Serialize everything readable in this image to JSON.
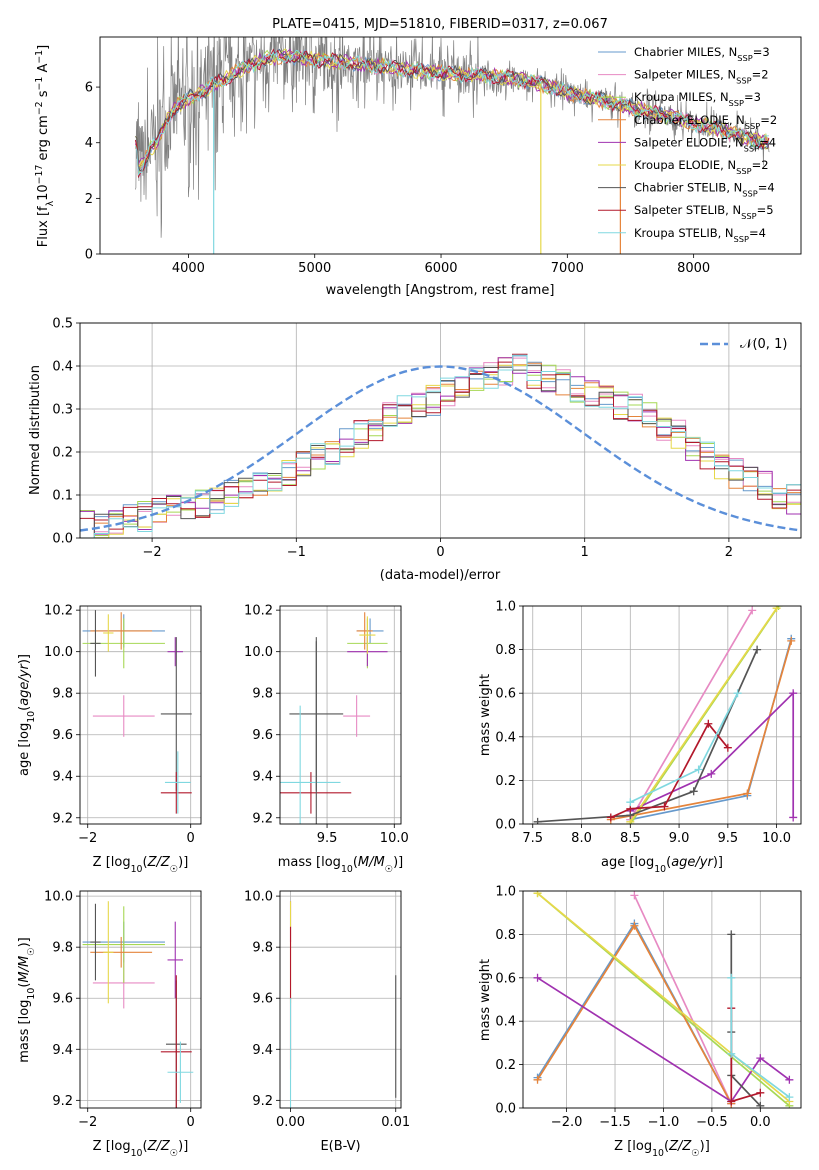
{
  "colors": {
    "Chabrier MILES": "#6699cc",
    "Salpeter MILES": "#e78ac3",
    "Kroupa MILES": "#a6d854",
    "Chabrier ELODIE": "#e5843b",
    "Salpeter ELODIE": "#a032b0",
    "Kroupa ELODIE": "#e6d84a",
    "Chabrier STELIB": "#555555",
    "Salpeter STELIB": "#b2182b",
    "Kroupa STELIB": "#80d8e0",
    "data": "#808080",
    "gauss": "#5b8fd9",
    "grid": "#b0b0b0"
  },
  "chart_data": [
    {
      "type": "line",
      "id": "spectrum",
      "title": "PLATE=0415, MJD=51810, FIBERID=0317, z=0.067",
      "xlabel": "wavelength [Angstrom, rest frame]",
      "ylabel": "Flux [f_λ 10^-17 erg cm^-2 s^-1 A^-1]",
      "xlim": [
        3300,
        8850
      ],
      "ylim": [
        0,
        7.8
      ],
      "xticks": [
        4000,
        5000,
        6000,
        7000,
        8000
      ],
      "yticks": [
        0,
        2,
        4,
        6
      ],
      "grid": false,
      "legend_position": "top-right",
      "legend": [
        {
          "name": "Chabrier MILES",
          "nssp": "3"
        },
        {
          "name": "Salpeter MILES",
          "nssp": "2"
        },
        {
          "name": "Kroupa MILES",
          "nssp": "3"
        },
        {
          "name": "Chabrier ELODIE",
          "nssp": "2"
        },
        {
          "name": "Salpeter ELODIE",
          "nssp": "4"
        },
        {
          "name": "Kroupa ELODIE",
          "nssp": "2"
        },
        {
          "name": "Chabrier STELIB",
          "nssp": "4"
        },
        {
          "name": "Salpeter STELIB",
          "nssp": "5"
        },
        {
          "name": "Kroupa STELIB",
          "nssp": "4"
        }
      ],
      "continuum_model": [
        [
          3600,
          3.0
        ],
        [
          3650,
          3.3
        ],
        [
          3700,
          3.8
        ],
        [
          3750,
          4.0
        ],
        [
          3800,
          4.5
        ],
        [
          3850,
          5.0
        ],
        [
          3900,
          5.3
        ],
        [
          4000,
          5.6
        ],
        [
          4100,
          5.8
        ],
        [
          4200,
          6.1
        ],
        [
          4300,
          6.3
        ],
        [
          4400,
          6.6
        ],
        [
          4500,
          6.8
        ],
        [
          4600,
          7.0
        ],
        [
          4700,
          7.1
        ],
        [
          4800,
          7.1
        ],
        [
          5000,
          7.0
        ],
        [
          5200,
          6.9
        ],
        [
          5400,
          6.8
        ],
        [
          5600,
          6.7
        ],
        [
          5800,
          6.6
        ],
        [
          6000,
          6.5
        ],
        [
          6200,
          6.45
        ],
        [
          6400,
          6.4
        ],
        [
          6600,
          6.3
        ],
        [
          6800,
          6.1
        ],
        [
          7000,
          5.8
        ],
        [
          7200,
          5.6
        ],
        [
          7400,
          5.4
        ],
        [
          7600,
          5.15
        ],
        [
          7800,
          4.95
        ],
        [
          8000,
          4.7
        ],
        [
          8200,
          4.5
        ],
        [
          8400,
          4.2
        ],
        [
          8600,
          4.0
        ]
      ]
    },
    {
      "type": "line",
      "id": "residuals",
      "xlabel": "(data-model)/error",
      "ylabel": "Normed distribution",
      "xlim": [
        -2.5,
        2.5
      ],
      "ylim": [
        0,
        0.5
      ],
      "xticks": [
        -2,
        -1,
        0,
        1,
        2
      ],
      "yticks": [
        0.0,
        0.1,
        0.2,
        0.3,
        0.4,
        0.5
      ],
      "grid": true,
      "legend_position": "top-right",
      "gauss_label": "N(0,1)",
      "hist_bins": [
        -2.5,
        2.5,
        0.1
      ],
      "hist_base": [
        0.03,
        0.035,
        0.04,
        0.045,
        0.05,
        0.06,
        0.065,
        0.07,
        0.08,
        0.09,
        0.1,
        0.115,
        0.13,
        0.14,
        0.15,
        0.17,
        0.19,
        0.2,
        0.22,
        0.24,
        0.26,
        0.28,
        0.3,
        0.31,
        0.32,
        0.34,
        0.36,
        0.37,
        0.38,
        0.39,
        0.4,
        0.38,
        0.37,
        0.36,
        0.35,
        0.34,
        0.33,
        0.31,
        0.3,
        0.28,
        0.26,
        0.24,
        0.21,
        0.19,
        0.17,
        0.15,
        0.13,
        0.12,
        0.1,
        0.09
      ]
    },
    {
      "type": "scatter",
      "id": "z-age",
      "xlabel": "Z [log10(Z/Z☉)]",
      "ylabel": "age  [log10(age/yr)]",
      "xlim": [
        -2.15,
        0.2
      ],
      "ylim": [
        9.17,
        10.22
      ],
      "xticks": [
        -2,
        0
      ],
      "yticks": [
        9.2,
        9.4,
        9.6,
        9.8,
        10.0,
        10.2
      ],
      "grid": true,
      "points": [
        {
          "s": "Chabrier MILES",
          "x": -1.3,
          "y": 10.1,
          "ex": 0.8,
          "ey": 0.08
        },
        {
          "s": "Salpeter MILES",
          "x": -1.3,
          "y": 9.69,
          "ex": 0.6,
          "ey": 0.1
        },
        {
          "s": "Kroupa MILES",
          "x": -1.3,
          "y": 10.04,
          "ex": 0.8,
          "ey": 0.12
        },
        {
          "s": "Chabrier ELODIE",
          "x": -1.35,
          "y": 10.1,
          "ex": 0.6,
          "ey": 0.09
        },
        {
          "s": "Salpeter ELODIE",
          "x": -0.3,
          "y": 10.0,
          "ex": 0.15,
          "ey": 0.07
        },
        {
          "s": "Kroupa ELODIE",
          "x": -1.6,
          "y": 10.09,
          "ex": 0.1,
          "ey": 0.09
        },
        {
          "s": "Chabrier STELIB",
          "x": -0.28,
          "y": 9.7,
          "ex": 0.3,
          "ey": 0.37
        },
        {
          "s": "Salpeter STELIB",
          "x": -0.28,
          "y": 9.32,
          "ex": 0.3,
          "ey": 0.1
        },
        {
          "s": "Kroupa STELIB",
          "x": -0.25,
          "y": 9.37,
          "ex": 0.25,
          "ey": 0.15
        },
        {
          "s": "Chabrier STELIB",
          "x": -1.85,
          "y": 10.04,
          "ex": 0.1,
          "ey": 0.16
        }
      ]
    },
    {
      "type": "scatter",
      "id": "mass-age",
      "xlabel": "mass [log10(M/M☉)]",
      "ylabel": "",
      "xlim": [
        9.15,
        10.05
      ],
      "ylim": [
        9.17,
        10.22
      ],
      "xticks": [
        9.5,
        10.0
      ],
      "yticks": [
        9.2,
        9.4,
        9.6,
        9.8,
        10.0,
        10.2
      ],
      "grid": true,
      "points": [
        {
          "s": "Chabrier MILES",
          "x": 9.82,
          "y": 10.1,
          "ex": 0.1,
          "ey": 0.06
        },
        {
          "s": "Salpeter MILES",
          "x": 9.72,
          "y": 9.69,
          "ex": 0.1,
          "ey": 0.1
        },
        {
          "s": "Kroupa MILES",
          "x": 9.8,
          "y": 10.04,
          "ex": 0.15,
          "ey": 0.12
        },
        {
          "s": "Chabrier ELODIE",
          "x": 9.78,
          "y": 10.1,
          "ex": 0.06,
          "ey": 0.09
        },
        {
          "s": "Salpeter ELODIE",
          "x": 9.8,
          "y": 10.0,
          "ex": 0.15,
          "ey": 0.07
        },
        {
          "s": "Kroupa ELODIE",
          "x": 9.8,
          "y": 10.08,
          "ex": 0.06,
          "ey": 0.09
        },
        {
          "s": "Chabrier STELIB",
          "x": 9.42,
          "y": 9.7,
          "ex": 0.2,
          "ey": 0.37
        },
        {
          "s": "Salpeter STELIB",
          "x": 9.38,
          "y": 9.32,
          "ex": 0.3,
          "ey": 0.1
        },
        {
          "s": "Kroupa STELIB",
          "x": 9.3,
          "y": 9.37,
          "ex": 0.3,
          "ey": 0.37
        },
        {
          "s": "Chabrier STELIB",
          "x": 9.42,
          "y": 9.5,
          "ex": 0.0,
          "ey": 0.55
        }
      ]
    },
    {
      "type": "line",
      "id": "age-weight",
      "xlabel": "age  [log10(age/yr)]",
      "ylabel": "mass weight",
      "xlim": [
        7.4,
        10.25
      ],
      "ylim": [
        0,
        1.0
      ],
      "xticks": [
        7.5,
        8.0,
        8.5,
        9.0,
        9.5,
        10.0
      ],
      "yticks": [
        0.0,
        0.2,
        0.4,
        0.6,
        0.8,
        1.0
      ],
      "grid": true,
      "series": [
        {
          "s": "Chabrier MILES",
          "x": [
            8.5,
            9.7,
            10.15
          ],
          "y": [
            0.02,
            0.13,
            0.85
          ]
        },
        {
          "s": "Salpeter MILES",
          "x": [
            8.5,
            9.75
          ],
          "y": [
            0.02,
            0.98
          ]
        },
        {
          "s": "Kroupa MILES",
          "x": [
            8.5,
            10.02
          ],
          "y": [
            0.0,
            1.0
          ]
        },
        {
          "s": "Chabrier ELODIE",
          "x": [
            8.3,
            9.7,
            10.15
          ],
          "y": [
            0.02,
            0.14,
            0.84
          ]
        },
        {
          "s": "Salpeter ELODIE",
          "x": [
            8.5,
            9.33,
            10.17,
            10.17
          ],
          "y": [
            0.06,
            0.23,
            0.6,
            0.03
          ]
        },
        {
          "s": "Kroupa ELODIE",
          "x": [
            8.5,
            10.0
          ],
          "y": [
            0.01,
            0.99
          ]
        },
        {
          "s": "Chabrier STELIB",
          "x": [
            7.55,
            8.5,
            9.15,
            9.8
          ],
          "y": [
            0.01,
            0.04,
            0.15,
            0.8
          ]
        },
        {
          "s": "Salpeter STELIB",
          "x": [
            8.3,
            8.5,
            8.85,
            9.3,
            9.5
          ],
          "y": [
            0.03,
            0.07,
            0.08,
            0.46,
            0.35
          ]
        },
        {
          "s": "Kroupa STELIB",
          "x": [
            8.5,
            9.2,
            9.6
          ],
          "y": [
            0.1,
            0.25,
            0.6
          ]
        }
      ]
    },
    {
      "type": "scatter",
      "id": "z-mass",
      "xlabel": "Z [log10(Z/Z☉)]",
      "ylabel": "mass [log10(M/M☉)]",
      "xlim": [
        -2.15,
        0.2
      ],
      "ylim": [
        9.17,
        10.02
      ],
      "xticks": [
        -2,
        0
      ],
      "yticks": [
        9.2,
        9.4,
        9.6,
        9.8,
        10.0
      ],
      "grid": true,
      "points": [
        {
          "s": "Chabrier MILES",
          "x": -1.3,
          "y": 9.82,
          "ex": 0.8,
          "ey": 0.08
        },
        {
          "s": "Salpeter MILES",
          "x": -1.3,
          "y": 9.66,
          "ex": 0.6,
          "ey": 0.1
        },
        {
          "s": "Kroupa MILES",
          "x": -1.3,
          "y": 9.81,
          "ex": 0.8,
          "ey": 0.15
        },
        {
          "s": "Chabrier ELODIE",
          "x": -1.35,
          "y": 9.78,
          "ex": 0.6,
          "ey": 0.06
        },
        {
          "s": "Salpeter ELODIE",
          "x": -0.3,
          "y": 9.75,
          "ex": 0.15,
          "ey": 0.15
        },
        {
          "s": "Kroupa ELODIE",
          "x": -1.6,
          "y": 9.78,
          "ex": 0.1,
          "ey": 0.2
        },
        {
          "s": "Chabrier STELIB",
          "x": -0.28,
          "y": 9.42,
          "ex": 0.2,
          "ey": 0.25
        },
        {
          "s": "Salpeter STELIB",
          "x": -0.28,
          "y": 9.39,
          "ex": 0.3,
          "ey": 0.3
        },
        {
          "s": "Kroupa STELIB",
          "x": -0.2,
          "y": 9.31,
          "ex": 0.25,
          "ey": 0.12
        },
        {
          "s": "Chabrier STELIB",
          "x": -1.85,
          "y": 9.82,
          "ex": 0.1,
          "ey": 0.15
        }
      ]
    },
    {
      "type": "scatter",
      "id": "ebv-mass",
      "xlabel": "E(B-V)",
      "ylabel": "",
      "xlim": [
        -0.001,
        0.0105
      ],
      "ylim": [
        9.17,
        10.02
      ],
      "xticks": [
        0.0,
        0.01
      ],
      "xticklabels": [
        "0.00",
        "0.01"
      ],
      "yticks": [
        9.2,
        9.4,
        9.6,
        9.8,
        10.0
      ],
      "grid": true,
      "points": [
        {
          "s": "Salpeter ELODIE",
          "x": 0.0,
          "y": 9.9,
          "ey": 0.08
        },
        {
          "s": "Kroupa ELODIE",
          "x": 0.0,
          "y": 9.78,
          "ey": 0.2
        },
        {
          "s": "Salpeter STELIB",
          "x": 0.0,
          "y": 9.6,
          "ey": 0.28
        },
        {
          "s": "Kroupa STELIB",
          "x": 0.0,
          "y": 9.35,
          "ey": 0.25
        },
        {
          "s": "Chabrier STELIB",
          "x": 0.01,
          "y": 9.45,
          "ey": 0.24
        }
      ]
    },
    {
      "type": "line",
      "id": "z-weight",
      "xlabel": "Z [log10(Z/Z☉)]",
      "ylabel": "mass weight",
      "xlim": [
        -2.45,
        0.42
      ],
      "ylim": [
        0,
        1.0
      ],
      "xticks": [
        -2.0,
        -1.5,
        -1.0,
        -0.5,
        0.0
      ],
      "yticks": [
        0.0,
        0.2,
        0.4,
        0.6,
        0.8,
        1.0
      ],
      "grid": true,
      "series": [
        {
          "s": "Chabrier MILES",
          "x": [
            -2.3,
            -1.3,
            -0.3
          ],
          "y": [
            0.14,
            0.85,
            0.02
          ]
        },
        {
          "s": "Salpeter MILES",
          "x": [
            -1.3,
            -0.3
          ],
          "y": [
            0.98,
            0.02
          ]
        },
        {
          "s": "Kroupa MILES",
          "x": [
            -2.3,
            0.3
          ],
          "y": [
            0.99,
            0.01
          ]
        },
        {
          "s": "Chabrier ELODIE",
          "x": [
            -2.3,
            -1.3,
            -0.3
          ],
          "y": [
            0.13,
            0.84,
            0.02
          ]
        },
        {
          "s": "Salpeter ELODIE",
          "x": [
            -2.3,
            -0.3,
            0.0,
            0.3
          ],
          "y": [
            0.6,
            0.03,
            0.23,
            0.13
          ]
        },
        {
          "s": "Kroupa ELODIE",
          "x": [
            -2.3,
            0.3
          ],
          "y": [
            0.99,
            0.03
          ]
        },
        {
          "s": "Chabrier STELIB",
          "x": [
            -0.3,
            -0.3,
            -0.3,
            0.0
          ],
          "y": [
            0.8,
            0.35,
            0.15,
            0.01
          ]
        },
        {
          "s": "Salpeter STELIB",
          "x": [
            -0.3,
            -0.3,
            0.0
          ],
          "y": [
            0.46,
            0.03,
            0.07
          ]
        },
        {
          "s": "Kroupa STELIB",
          "x": [
            -0.3,
            -0.3,
            0.3
          ],
          "y": [
            0.6,
            0.25,
            0.05
          ]
        }
      ]
    }
  ]
}
